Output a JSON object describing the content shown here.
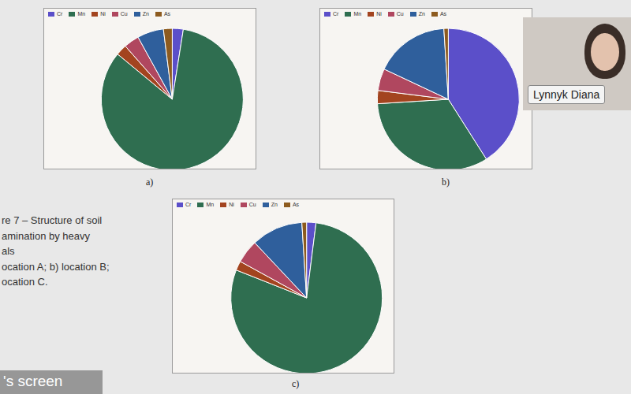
{
  "chart_data": [
    {
      "type": "pie",
      "title": "a)",
      "legend": "top",
      "categories": [
        "Cr",
        "Mn",
        "Ni",
        "Cu",
        "Zn",
        "As"
      ],
      "values": [
        2.5,
        83.5,
        2.5,
        3.5,
        6,
        2
      ],
      "colors": [
        "#5b4fc9",
        "#2f6e50",
        "#a3441f",
        "#b0475f",
        "#2f5f9c",
        "#8d5b1f"
      ]
    },
    {
      "type": "pie",
      "title": "b)",
      "legend": "top",
      "categories": [
        "Cr",
        "Mn",
        "Ni",
        "Cu",
        "Zn",
        "As"
      ],
      "values": [
        41,
        33,
        3,
        5,
        17,
        1
      ],
      "colors": [
        "#5b4fc9",
        "#2f6e50",
        "#a3441f",
        "#b0475f",
        "#2f5f9c",
        "#8d5b1f"
      ]
    },
    {
      "type": "pie",
      "title": "c)",
      "legend": "top",
      "categories": [
        "Cr",
        "Mn",
        "Ni",
        "Cu",
        "Zn",
        "As"
      ],
      "values": [
        2,
        79,
        2,
        5,
        11,
        1
      ],
      "colors": [
        "#5b4fc9",
        "#2f6e50",
        "#a3441f",
        "#b0475f",
        "#2f5f9c",
        "#8d5b1f"
      ]
    }
  ],
  "caption": [
    "re 7 – Structure of soil",
    "amination by heavy",
    "als",
    "ocation A; b) location B;",
    "ocation C."
  ],
  "video_tile": {
    "name": "Lynnyk Diana"
  },
  "footer": "'s screen"
}
